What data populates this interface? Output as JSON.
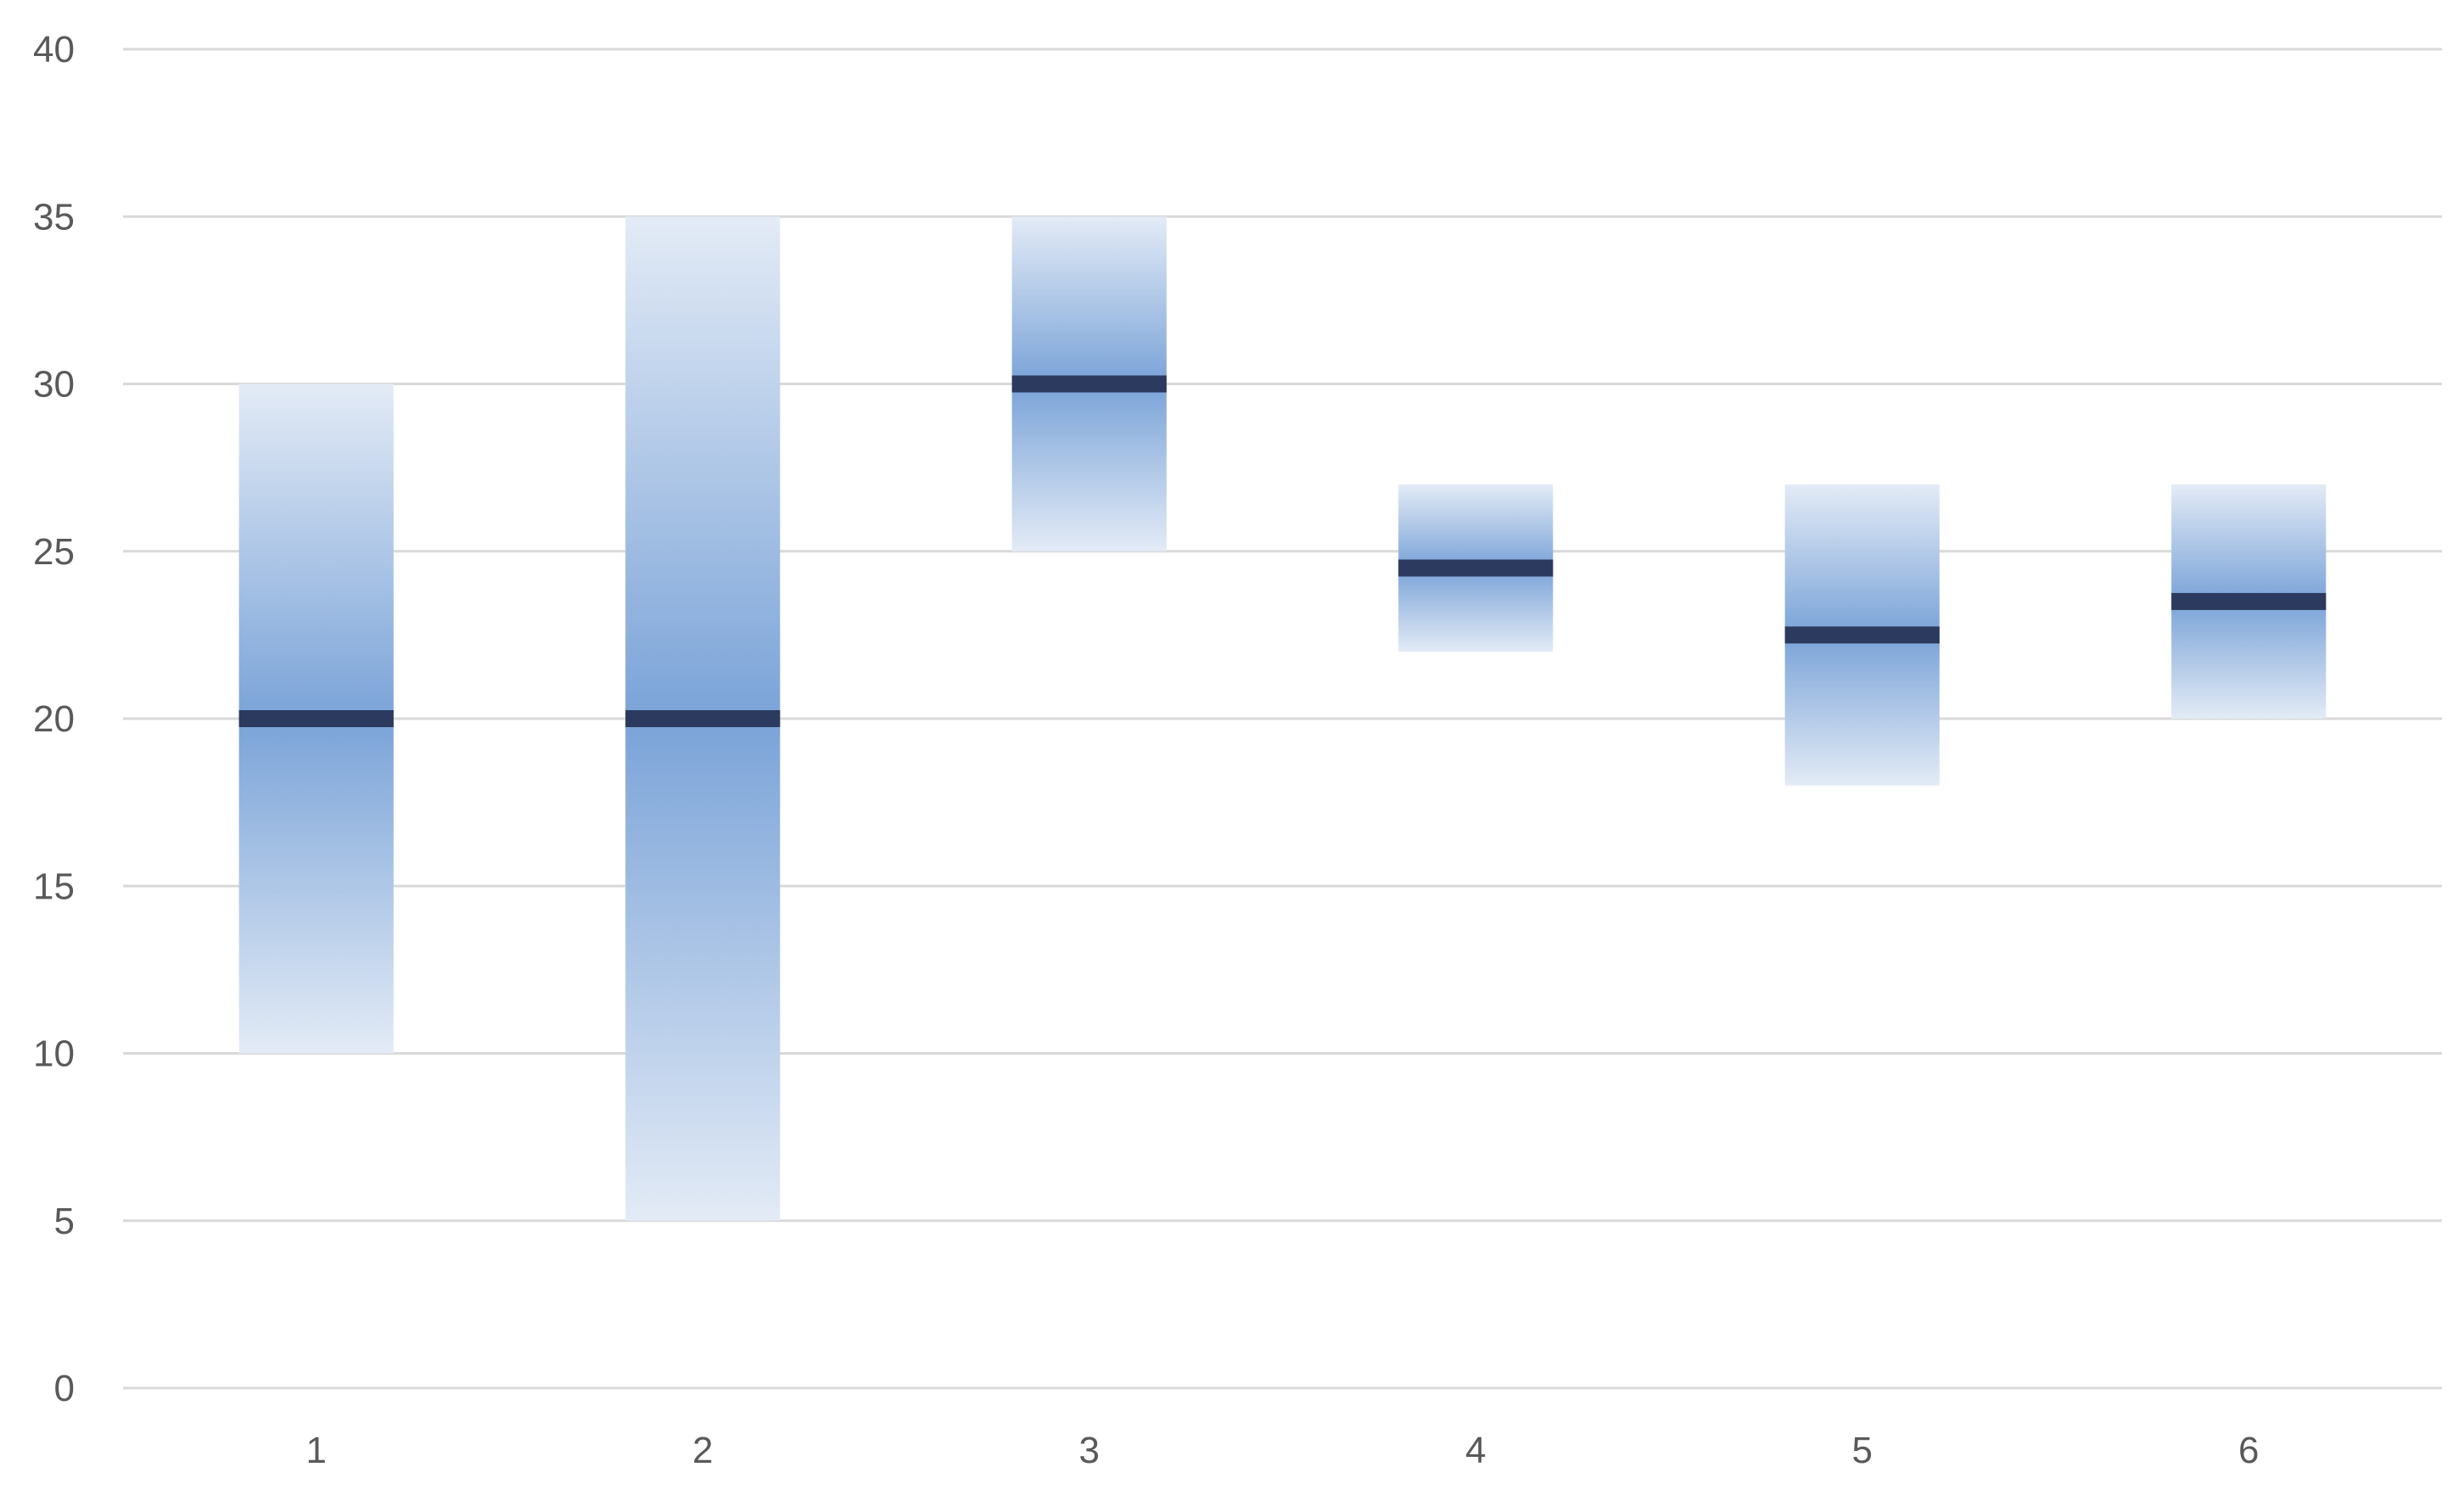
{
  "chart_data": {
    "type": "bar",
    "subtype": "floating-range-with-marker",
    "title": "",
    "xlabel": "",
    "ylabel": "",
    "categories": [
      "1",
      "2",
      "3",
      "4",
      "5",
      "6"
    ],
    "low": [
      10,
      5,
      25,
      22,
      18,
      20
    ],
    "high": [
      30,
      35,
      35,
      27,
      27,
      27
    ],
    "marker": [
      20,
      20,
      30,
      24.5,
      22.5,
      23.5
    ],
    "ylim": [
      0,
      40
    ],
    "yticks": [
      "0",
      "5",
      "10",
      "15",
      "20",
      "25",
      "30",
      "35",
      "40"
    ],
    "grid": true,
    "legend": "none",
    "colors": {
      "band_light": "#e3ebf6",
      "band_dark": "#7aa3d8",
      "marker": "#2b3a5e",
      "grid": "#d9d9d9",
      "text": "#595959"
    }
  }
}
